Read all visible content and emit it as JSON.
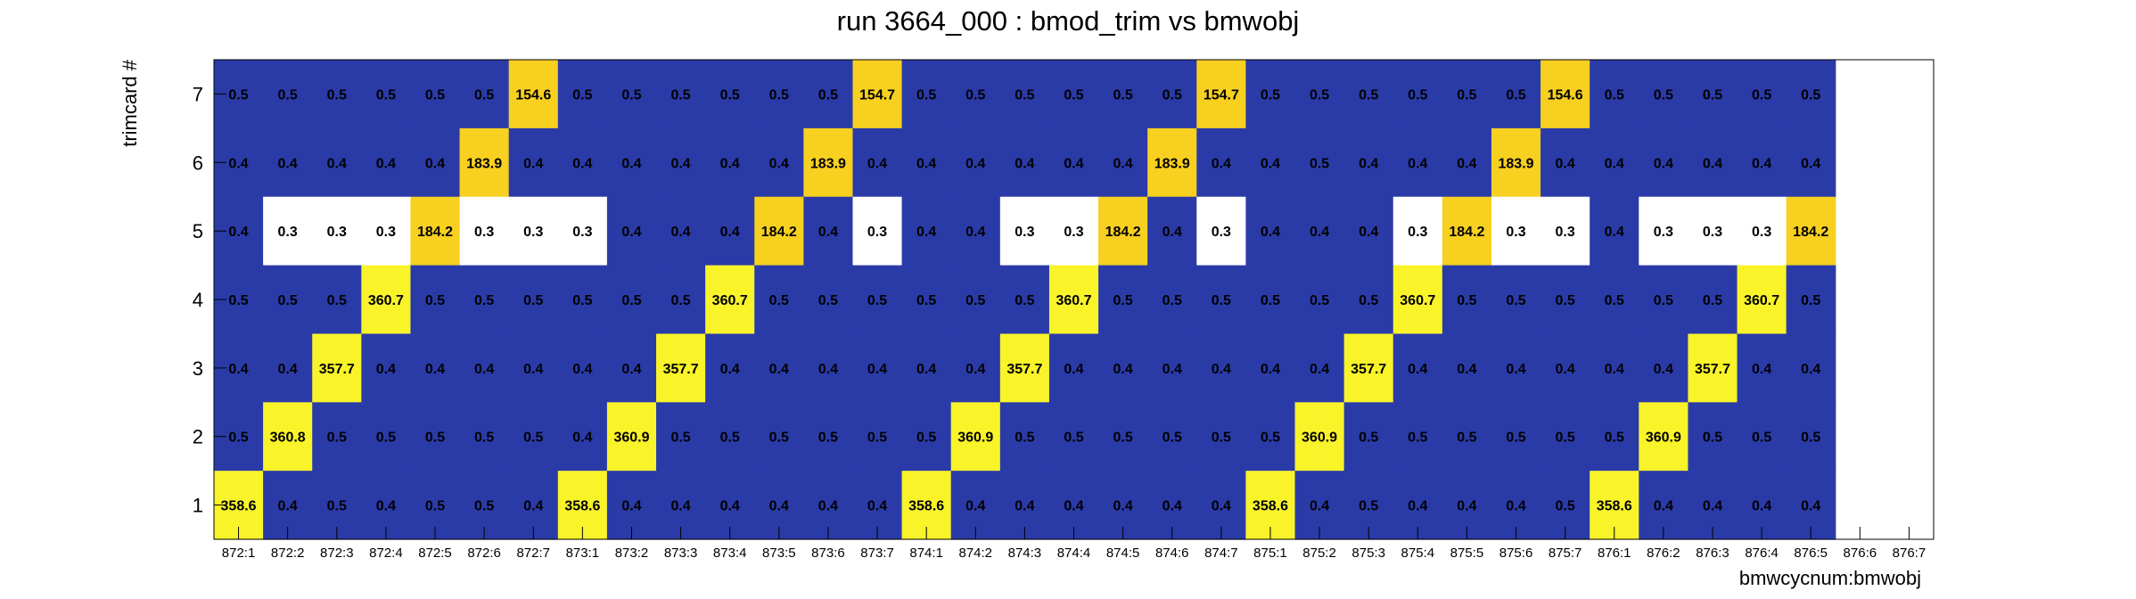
{
  "chart_data": {
    "type": "heatmap",
    "title": "run 3664_000 : bmod_trim vs bmwobj",
    "xlabel": "bmwcycnum:bmwobj",
    "ylabel": "trimcard #",
    "x_categories": [
      "872:1",
      "872:2",
      "872:3",
      "872:4",
      "872:5",
      "872:6",
      "872:7",
      "873:1",
      "873:2",
      "873:3",
      "873:4",
      "873:5",
      "873:6",
      "873:7",
      "874:1",
      "874:2",
      "874:3",
      "874:4",
      "874:5",
      "874:6",
      "874:7",
      "875:1",
      "875:2",
      "875:3",
      "875:4",
      "875:5",
      "875:6",
      "875:7",
      "876:1",
      "876:2",
      "876:3",
      "876:4",
      "876:5",
      "876:6",
      "876:7"
    ],
    "y_categories": [
      "1",
      "2",
      "3",
      "4",
      "5",
      "6",
      "7"
    ],
    "rows": [
      {
        "y": "7",
        "values": [
          0.5,
          0.5,
          0.5,
          0.5,
          0.5,
          0.5,
          154.6,
          0.5,
          0.5,
          0.5,
          0.5,
          0.5,
          0.5,
          154.7,
          0.5,
          0.5,
          0.5,
          0.5,
          0.5,
          0.5,
          154.7,
          0.5,
          0.5,
          0.5,
          0.5,
          0.5,
          0.5,
          154.6,
          0.5,
          0.5,
          0.5,
          0.5,
          0.5,
          null,
          null
        ]
      },
      {
        "y": "6",
        "values": [
          0.4,
          0.4,
          0.4,
          0.4,
          0.4,
          183.9,
          0.4,
          0.4,
          0.4,
          0.4,
          0.4,
          0.4,
          183.9,
          0.4,
          0.4,
          0.4,
          0.4,
          0.4,
          0.4,
          183.9,
          0.4,
          0.4,
          0.5,
          0.4,
          0.4,
          0.4,
          183.9,
          0.4,
          0.4,
          0.4,
          0.4,
          0.4,
          0.4,
          null,
          null
        ]
      },
      {
        "y": "5",
        "values": [
          0.4,
          0.3,
          0.3,
          0.3,
          184.2,
          0.3,
          0.3,
          0.3,
          0.4,
          0.4,
          0.4,
          184.2,
          0.4,
          0.3,
          0.4,
          0.4,
          0.3,
          0.3,
          184.2,
          0.4,
          0.3,
          0.4,
          0.4,
          0.4,
          0.3,
          184.2,
          0.3,
          0.3,
          0.4,
          0.3,
          0.3,
          0.3,
          184.2,
          null,
          null
        ]
      },
      {
        "y": "4",
        "values": [
          0.5,
          0.5,
          0.5,
          360.7,
          0.5,
          0.5,
          0.5,
          0.5,
          0.5,
          0.5,
          360.7,
          0.5,
          0.5,
          0.5,
          0.5,
          0.5,
          0.5,
          360.7,
          0.5,
          0.5,
          0.5,
          0.5,
          0.5,
          0.5,
          360.7,
          0.5,
          0.5,
          0.5,
          0.5,
          0.5,
          0.5,
          360.7,
          0.5,
          null,
          null
        ]
      },
      {
        "y": "3",
        "values": [
          0.4,
          0.4,
          357.7,
          0.4,
          0.4,
          0.4,
          0.4,
          0.4,
          0.4,
          357.7,
          0.4,
          0.4,
          0.4,
          0.4,
          0.4,
          0.4,
          357.7,
          0.4,
          0.4,
          0.4,
          0.4,
          0.4,
          0.4,
          357.7,
          0.4,
          0.4,
          0.4,
          0.4,
          0.4,
          0.4,
          357.7,
          0.4,
          0.4,
          null,
          null
        ]
      },
      {
        "y": "2",
        "values": [
          0.5,
          360.8,
          0.5,
          0.5,
          0.5,
          0.5,
          0.5,
          0.4,
          360.9,
          0.5,
          0.5,
          0.5,
          0.5,
          0.5,
          0.5,
          360.9,
          0.5,
          0.5,
          0.5,
          0.5,
          0.5,
          0.5,
          360.9,
          0.5,
          0.5,
          0.5,
          0.5,
          0.5,
          0.5,
          360.9,
          0.5,
          0.5,
          0.5,
          null,
          null
        ]
      },
      {
        "y": "1",
        "values": [
          358.6,
          0.4,
          0.5,
          0.4,
          0.5,
          0.5,
          0.4,
          358.6,
          0.4,
          0.4,
          0.4,
          0.4,
          0.4,
          0.4,
          358.6,
          0.4,
          0.4,
          0.4,
          0.4,
          0.4,
          0.4,
          358.6,
          0.4,
          0.5,
          0.4,
          0.4,
          0.4,
          0.5,
          358.6,
          0.4,
          0.4,
          0.4,
          0.4,
          null,
          null
        ]
      }
    ],
    "zlim": [
      0.35,
      361
    ],
    "palette": {
      "low": "#2a3ba8",
      "below_min": "#ffffff",
      "mid": "#f7d020",
      "high": "#f9f32a"
    },
    "grid": false,
    "legend": "none"
  }
}
